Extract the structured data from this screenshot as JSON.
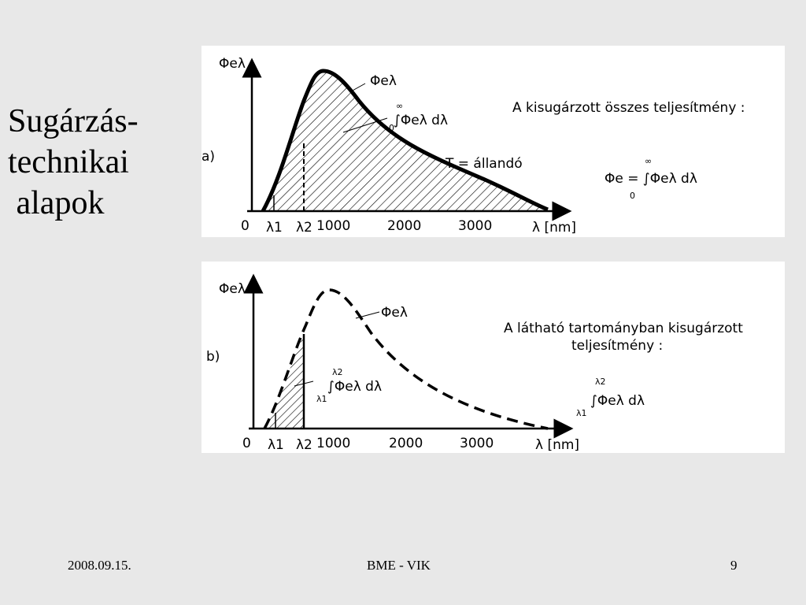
{
  "slide": {
    "title_lines": [
      "Sugárzás-",
      "technikai",
      " alapok"
    ]
  },
  "panel_a": {
    "tag": "a)",
    "y_axis_label": "Φeλ",
    "curve_label": "Φeλ",
    "integral_label": "∫Φeλ dλ",
    "integral_lower": "0",
    "integral_upper": "∞",
    "temperature_label": "T = állandó",
    "heading": "A kisugárzott összes teljesítmény :",
    "formula": "Φe = ∫Φeλ dλ",
    "formula_lower": "0",
    "formula_upper": "∞",
    "origin": "0",
    "lambda1": "λ1",
    "lambda2": "λ2",
    "ticks": [
      "1000",
      "2000",
      "3000"
    ],
    "x_axis_label": "λ [nm]"
  },
  "panel_b": {
    "tag": "b)",
    "y_axis_label": "Φeλ",
    "curve_label": "Φeλ",
    "integral_label": "∫Φeλ dλ",
    "integral_lower": "λ1",
    "integral_upper": "λ2",
    "heading_line1": "A látható tartományban kisugárzott",
    "heading_line2": "teljesítmény :",
    "formula": "∫Φeλ dλ",
    "formula_lower": "λ1",
    "formula_upper": "λ2",
    "origin": "0",
    "lambda1": "λ1",
    "lambda2": "λ2",
    "ticks": [
      "1000",
      "2000",
      "3000"
    ],
    "x_axis_label": "λ [nm]"
  },
  "footer": {
    "date": "2008.09.15.",
    "center": "BME - VIK",
    "page": "9"
  }
}
